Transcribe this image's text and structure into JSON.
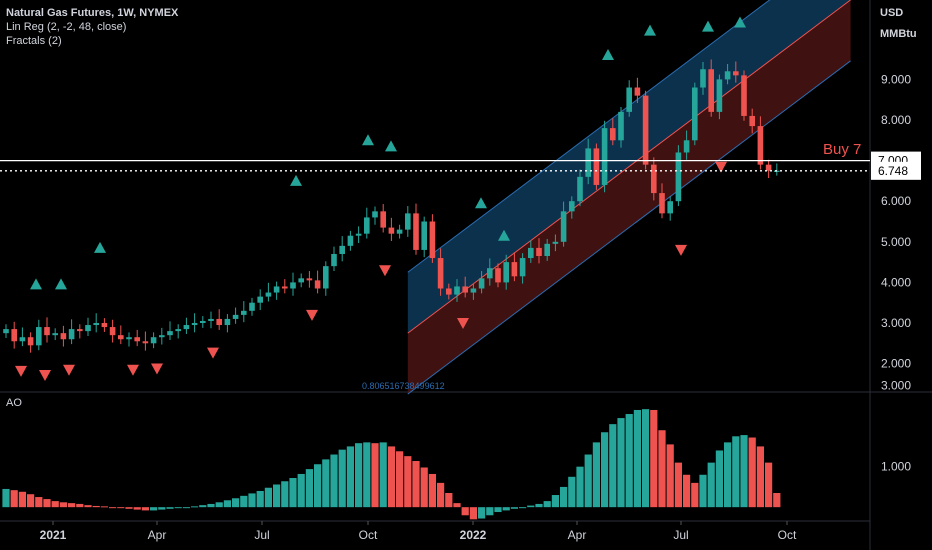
{
  "legend": {
    "symbol": "Natural Gas Futures, 1W, NYMEX",
    "linreg": "Lin Reg (2, -2, 48, close)",
    "fractals": "Fractals (2)"
  },
  "price_axis": {
    "currency": "USD",
    "unit": "MMBtu"
  },
  "ao_label": "AO",
  "signal_label": "Buy 7",
  "colors": {
    "up": "#26a69a",
    "down": "#ef5350",
    "channel_upper": "#0e3a5a",
    "channel_lower": "#4a1414"
  },
  "chart_data": [
    {
      "type": "candlestick",
      "title": "Natural Gas Futures, 1W, NYMEX",
      "x_tick_labels": [
        "2021",
        "Apr",
        "Jul",
        "Oct",
        "2022",
        "Apr",
        "Jul",
        "Oct"
      ],
      "y_tick_labels": [
        "2.000",
        "3.000",
        "4.000",
        "5.000",
        "6.000",
        "8.000",
        "9.000"
      ],
      "ylim": [
        1.5,
        10.0
      ],
      "horizontal_lines": [
        {
          "value": 7.0,
          "label": "7.000",
          "style": "solid"
        },
        {
          "value": 6.748,
          "label": "6.748",
          "style": "dotted"
        }
      ],
      "linreg_label": "0.806516738499612",
      "close": [
        2.85,
        2.55,
        2.65,
        2.45,
        2.9,
        2.7,
        2.75,
        2.6,
        2.85,
        2.8,
        2.95,
        3.0,
        2.9,
        2.7,
        2.6,
        2.65,
        2.55,
        2.5,
        2.65,
        2.7,
        2.8,
        2.85,
        2.95,
        3.0,
        3.05,
        3.1,
        2.95,
        3.1,
        3.2,
        3.3,
        3.5,
        3.65,
        3.75,
        3.9,
        3.85,
        4.0,
        4.1,
        4.05,
        3.85,
        4.4,
        4.7,
        4.9,
        5.15,
        5.2,
        5.6,
        5.75,
        5.35,
        5.2,
        5.3,
        5.7,
        4.8,
        5.5,
        4.6,
        3.85,
        3.7,
        3.9,
        3.75,
        3.85,
        4.1,
        4.35,
        4.0,
        4.5,
        4.15,
        4.6,
        4.85,
        4.65,
        4.95,
        5.0,
        5.75,
        6.0,
        6.6,
        7.3,
        6.4,
        7.8,
        7.5,
        8.2,
        8.8,
        8.6,
        6.9,
        6.2,
        5.7,
        6.0,
        7.2,
        7.5,
        8.8,
        9.25,
        8.2,
        9.0,
        9.2,
        9.1,
        8.1,
        7.85,
        6.9,
        6.75,
        6.75
      ]
    },
    {
      "type": "bar",
      "title": "AO",
      "y_tick_labels": [
        "1.000",
        "3.000"
      ],
      "values": [
        0.45,
        0.42,
        0.38,
        0.32,
        0.25,
        0.2,
        0.15,
        0.12,
        0.1,
        0.08,
        0.05,
        0.03,
        0.02,
        0.0,
        -0.02,
        -0.04,
        -0.06,
        -0.08,
        -0.08,
        -0.06,
        -0.04,
        -0.02,
        0.0,
        0.02,
        0.05,
        0.08,
        0.12,
        0.17,
        0.22,
        0.28,
        0.34,
        0.4,
        0.48,
        0.56,
        0.64,
        0.72,
        0.82,
        0.94,
        1.06,
        1.18,
        1.3,
        1.42,
        1.5,
        1.58,
        1.6,
        1.58,
        1.6,
        1.5,
        1.38,
        1.26,
        1.14,
        0.98,
        0.82,
        0.6,
        0.35,
        0.1,
        -0.2,
        -0.3,
        -0.28,
        -0.2,
        -0.12,
        -0.08,
        -0.04,
        0.0,
        0.04,
        0.08,
        0.15,
        0.3,
        0.5,
        0.75,
        1.0,
        1.3,
        1.6,
        1.85,
        2.05,
        2.2,
        2.3,
        2.4,
        2.42,
        2.4,
        1.9,
        1.55,
        1.1,
        0.8,
        0.6,
        0.8,
        1.1,
        1.4,
        1.6,
        1.75,
        1.78,
        1.72,
        1.5,
        1.1,
        0.35
      ]
    }
  ]
}
